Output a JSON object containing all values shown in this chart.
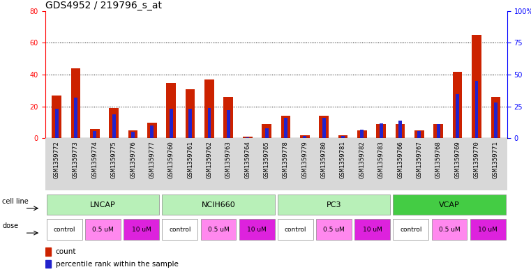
{
  "title": "GDS4952 / 219796_s_at",
  "samples": [
    "GSM1359772",
    "GSM1359773",
    "GSM1359774",
    "GSM1359775",
    "GSM1359776",
    "GSM1359777",
    "GSM1359760",
    "GSM1359761",
    "GSM1359762",
    "GSM1359763",
    "GSM1359764",
    "GSM1359765",
    "GSM1359778",
    "GSM1359779",
    "GSM1359780",
    "GSM1359781",
    "GSM1359782",
    "GSM1359783",
    "GSM1359766",
    "GSM1359767",
    "GSM1359768",
    "GSM1359769",
    "GSM1359770",
    "GSM1359771"
  ],
  "count_values": [
    27,
    44,
    6,
    19,
    5,
    10,
    35,
    31,
    37,
    26,
    1,
    9,
    14,
    2,
    14,
    2,
    5,
    9,
    9,
    5,
    9,
    42,
    65,
    26
  ],
  "percentile_values": [
    23,
    32,
    6,
    19,
    5,
    10,
    23,
    23,
    24,
    22,
    1,
    8,
    16,
    2,
    16,
    2,
    7,
    12,
    14,
    6,
    11,
    35,
    45,
    28
  ],
  "left_ylim": [
    0,
    80
  ],
  "right_ylim": [
    0,
    100
  ],
  "left_yticks": [
    0,
    20,
    40,
    60,
    80
  ],
  "right_yticks": [
    0,
    25,
    50,
    75,
    100
  ],
  "right_yticklabels": [
    "0",
    "25",
    "50",
    "75",
    "100%"
  ],
  "bar_color": "#cc2200",
  "percentile_color": "#2222cc",
  "cell_lines": [
    "LNCAP",
    "NCIH660",
    "PC3",
    "VCAP"
  ],
  "cell_line_colors": [
    "#b8f0b8",
    "#b8f0b8",
    "#b8f0b8",
    "#44cc44"
  ],
  "cell_line_spans": [
    [
      0,
      6
    ],
    [
      6,
      12
    ],
    [
      12,
      18
    ],
    [
      18,
      24
    ]
  ],
  "dose_groups": [
    {
      "label": "control",
      "start": 0,
      "end": 2,
      "color": "#ffffff"
    },
    {
      "label": "0.5 uM",
      "start": 2,
      "end": 4,
      "color": "#ff88ee"
    },
    {
      "label": "10 uM",
      "start": 4,
      "end": 6,
      "color": "#dd22dd"
    },
    {
      "label": "control",
      "start": 6,
      "end": 8,
      "color": "#ffffff"
    },
    {
      "label": "0.5 uM",
      "start": 8,
      "end": 10,
      "color": "#ff88ee"
    },
    {
      "label": "10 uM",
      "start": 10,
      "end": 12,
      "color": "#dd22dd"
    },
    {
      "label": "control",
      "start": 12,
      "end": 14,
      "color": "#ffffff"
    },
    {
      "label": "0.5 uM",
      "start": 14,
      "end": 16,
      "color": "#ff88ee"
    },
    {
      "label": "10 uM",
      "start": 16,
      "end": 18,
      "color": "#dd22dd"
    },
    {
      "label": "control",
      "start": 18,
      "end": 20,
      "color": "#ffffff"
    },
    {
      "label": "0.5 uM",
      "start": 20,
      "end": 22,
      "color": "#ff88ee"
    },
    {
      "label": "10 uM",
      "start": 22,
      "end": 24,
      "color": "#dd22dd"
    }
  ]
}
